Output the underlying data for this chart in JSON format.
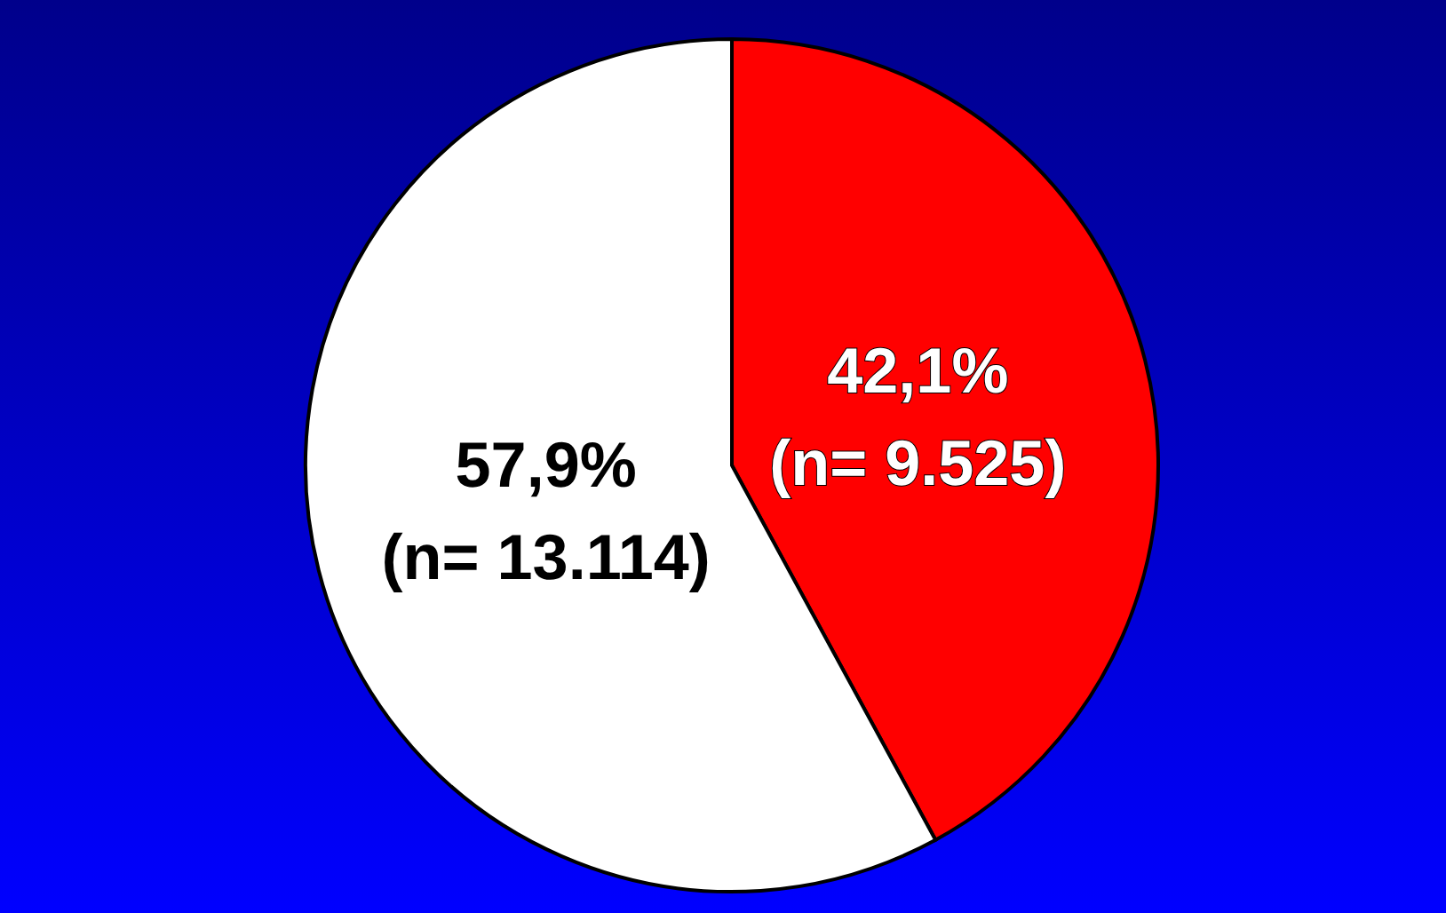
{
  "chart_data": {
    "type": "pie",
    "categories": [
      null,
      null
    ],
    "values": [
      9525,
      13114
    ],
    "colors": [
      "#ff0000",
      "#ffffff"
    ],
    "value_labels": [
      "42,1% (n= 9.525)",
      "57,9% (n= 13.114)"
    ]
  }
}
